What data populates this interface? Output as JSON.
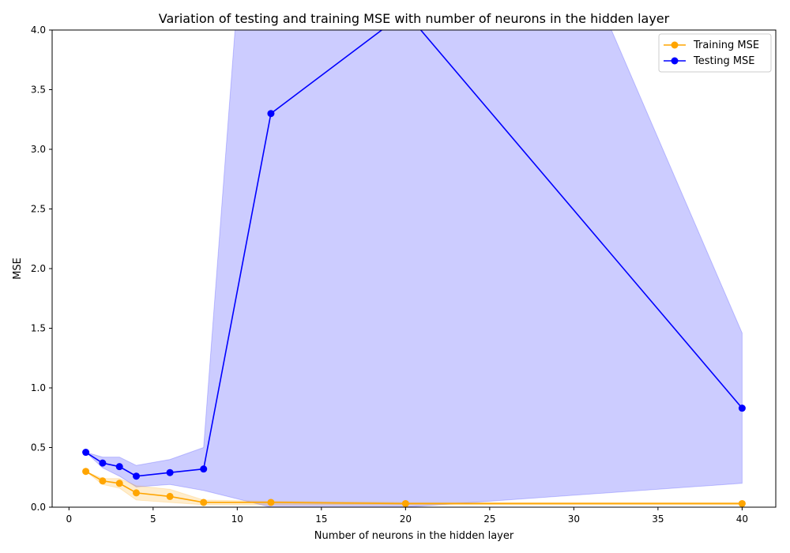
{
  "chart_data": {
    "type": "line",
    "title": "Variation of testing and training MSE with number of neurons in the hidden layer",
    "xlabel": "Number of neurons in the hidden layer",
    "ylabel": "MSE",
    "xlim": [
      -1,
      42
    ],
    "ylim": [
      0,
      4
    ],
    "xticks": [
      0,
      5,
      10,
      15,
      20,
      25,
      30,
      35,
      40
    ],
    "yticks": [
      0.0,
      0.5,
      1.0,
      1.5,
      2.0,
      2.5,
      3.0,
      3.5,
      4.0
    ],
    "xtick_labels": [
      "0",
      "5",
      "10",
      "15",
      "20",
      "25",
      "30",
      "35",
      "40"
    ],
    "ytick_labels": [
      "0.0",
      "0.5",
      "1.0",
      "1.5",
      "2.0",
      "2.5",
      "3.0",
      "3.5",
      "4.0"
    ],
    "grid": false,
    "legend_position": "top-right",
    "series": [
      {
        "name": "Training MSE",
        "color": "#ffa500",
        "band_color": "#ffa500",
        "x": [
          1,
          2,
          3,
          4,
          6,
          8,
          12,
          20,
          40
        ],
        "y": [
          0.3,
          0.22,
          0.2,
          0.12,
          0.09,
          0.04,
          0.04,
          0.03,
          0.03
        ],
        "band_lower": [
          0.3,
          0.19,
          0.16,
          0.06,
          0.04,
          0.02,
          0.02,
          0.02,
          0.02
        ],
        "band_upper": [
          0.3,
          0.24,
          0.24,
          0.18,
          0.15,
          0.06,
          0.05,
          0.04,
          0.04
        ]
      },
      {
        "name": "Testing MSE",
        "color": "#0000ff",
        "band_color": "#0000ff",
        "x": [
          1,
          2,
          3,
          4,
          6,
          8,
          12,
          20,
          40
        ],
        "y": [
          0.46,
          0.37,
          0.34,
          0.26,
          0.29,
          0.32,
          3.3,
          4.15,
          0.83
        ],
        "band_lower": [
          0.46,
          0.33,
          0.26,
          0.17,
          0.19,
          0.14,
          0.0,
          0.0,
          0.2
        ],
        "band_upper": [
          0.46,
          0.42,
          0.42,
          0.35,
          0.4,
          0.5,
          8.0,
          8.0,
          1.46
        ]
      }
    ]
  }
}
